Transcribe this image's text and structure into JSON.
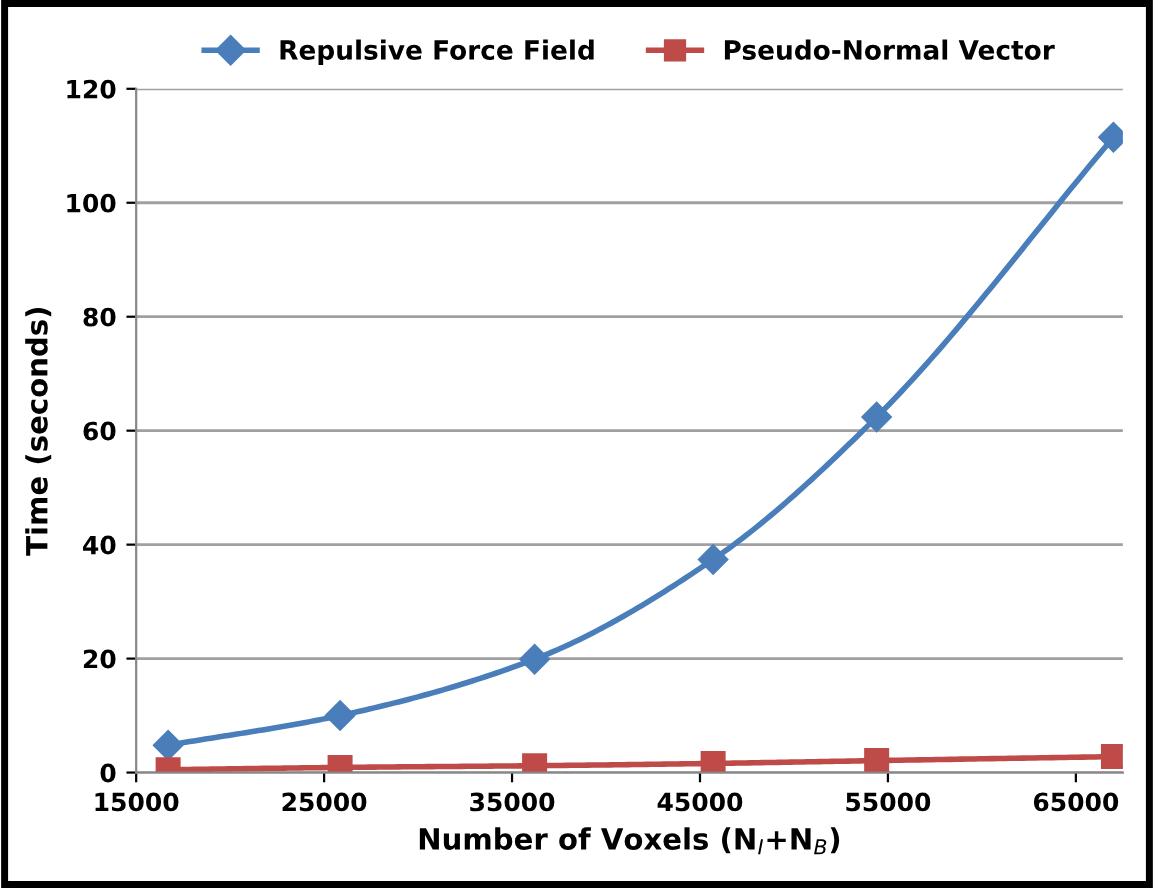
{
  "chart_data": {
    "type": "line",
    "xlabel": "Number of Voxels (N$_{I}$+N$_{B}$)",
    "ylabel": "Time (seconds)",
    "x": [
      16700,
      25850,
      36200,
      45700,
      54400,
      67000
    ],
    "series": [
      {
        "name": "Repulsive Force Field",
        "color": "#4a7ebb",
        "marker": "diamond",
        "values": [
          4.8,
          10.0,
          19.9,
          37.4,
          62.4,
          111.5
        ]
      },
      {
        "name": "Pseudo-Normal Vector",
        "color": "#be4b48",
        "marker": "square",
        "values": [
          0.5,
          0.9,
          1.2,
          1.6,
          2.1,
          2.8
        ]
      }
    ],
    "xlim": [
      15000,
      67500
    ],
    "xticks": [
      15000,
      25000,
      35000,
      45000,
      55000,
      65000
    ],
    "ylim": [
      0,
      120
    ],
    "yticks": [
      0,
      20,
      40,
      60,
      80,
      100,
      120
    ],
    "grid": "y",
    "legend": "top",
    "line_style": "solid"
  }
}
